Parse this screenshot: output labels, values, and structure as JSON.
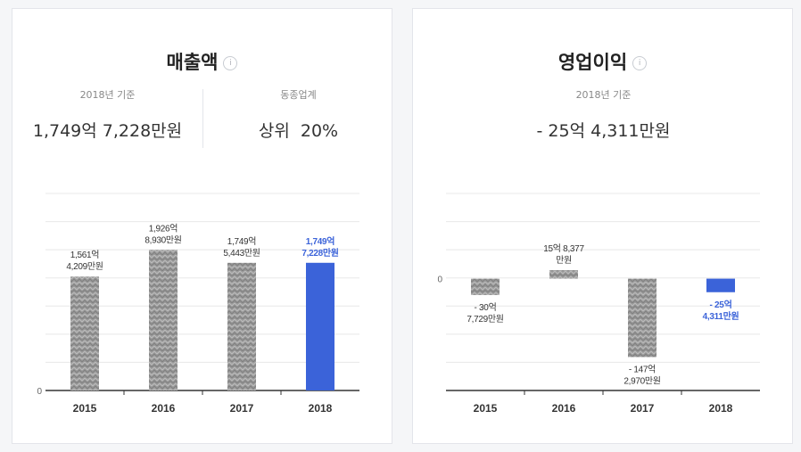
{
  "colors": {
    "bar": "#9a9a9a",
    "highlight": "#3b63d9",
    "grid": "#e8e8e8",
    "axis": "#333333"
  },
  "revenue_card": {
    "title": "매출액",
    "info_icon": "i",
    "basis_label": "2018년 기준",
    "basis_value": "1,749억 7,228만원",
    "industry_label": "동종업계",
    "industry_rank": "상위",
    "industry_percent": "20%"
  },
  "profit_card": {
    "title": "영업이익",
    "info_icon": "i",
    "basis_label": "2018년 기준",
    "basis_value": "- 25억 4,311만원"
  },
  "chart_data": [
    {
      "type": "bar",
      "title": "매출액",
      "categories": [
        "2015",
        "2016",
        "2017",
        "2018"
      ],
      "values": [
        1561.4209,
        1926.893,
        1749.5443,
        1749.7228
      ],
      "data_labels": [
        [
          "1,561억",
          "4,209만원"
        ],
        [
          "1,926억",
          "8,930만원"
        ],
        [
          "1,749억",
          "5,443만원"
        ],
        [
          "1,749억",
          "7,228만원"
        ]
      ],
      "highlight_index": 3,
      "y_zero_label": "0",
      "ylim": [
        0,
        2700
      ],
      "grid": true
    },
    {
      "type": "bar",
      "title": "영업이익",
      "categories": [
        "2015",
        "2016",
        "2017",
        "2018"
      ],
      "values": [
        -30.7729,
        15.8377,
        -147.297,
        -25.4311
      ],
      "data_labels": [
        [
          "- 30억",
          "7,729만원"
        ],
        [
          "15억 8,377",
          "만원"
        ],
        [
          "- 147억",
          "2,970만원"
        ],
        [
          "- 25억",
          "4,311만원"
        ]
      ],
      "highlight_index": 3,
      "y_zero_label": "0",
      "ylim": [
        -210,
        160
      ],
      "grid": true
    }
  ]
}
